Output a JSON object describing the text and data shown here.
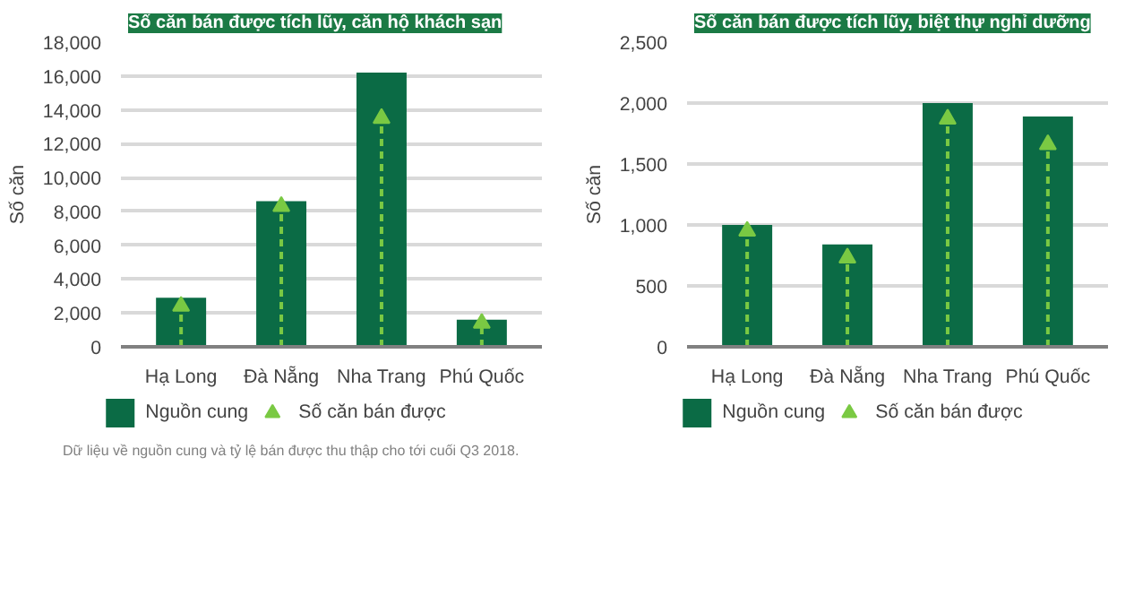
{
  "chart_data": [
    {
      "type": "bar",
      "title": "Số căn bán được tích lũy, căn hộ khách sạn",
      "ylabel": "Số căn",
      "categories": [
        "Hạ Long",
        "Đà Nẵng",
        "Nha Trang",
        "Phú Quốc"
      ],
      "series": [
        {
          "name": "Nguồn cung",
          "type": "bar",
          "color": "#0b6b45",
          "values": [
            2900,
            8600,
            16200,
            1600
          ]
        },
        {
          "name": "Số căn bán được",
          "type": "lollipop",
          "color": "#7ac943",
          "marker": "triangle",
          "line_style": "dashed",
          "values": [
            2400,
            8300,
            13500,
            1400
          ]
        }
      ],
      "ylim": [
        0,
        18000
      ],
      "yticks": [
        0,
        {
          "value": 2000,
          "label": "2,000"
        },
        {
          "value": 4000,
          "label": "4,000"
        },
        {
          "value": 6000,
          "label": "6,000"
        },
        {
          "value": 8000,
          "label": "8,000"
        },
        {
          "value": 10000,
          "label": "10,000"
        },
        {
          "value": 12000,
          "label": "12,000"
        },
        {
          "value": 14000,
          "label": "14,000"
        },
        {
          "value": 16000,
          "label": "16,000"
        },
        {
          "value": 18000,
          "label": "18,000"
        }
      ],
      "grid": "y",
      "legend": "bottom",
      "annotations": [
        "Dữ liệu về nguồn cung và tỷ lệ bán được thu thập cho tới cuối Q3 2018."
      ]
    },
    {
      "type": "bar",
      "title": "Số căn bán được tích lũy, biệt thự nghỉ dưỡng",
      "ylabel": "Số căn",
      "categories": [
        "Hạ Long",
        "Đà Nẵng",
        "Nha Trang",
        "Phú Quốc"
      ],
      "series": [
        {
          "name": "Nguồn cung",
          "type": "bar",
          "color": "#0b6b45",
          "values": [
            1000,
            840,
            2000,
            1890
          ]
        },
        {
          "name": "Số căn bán được",
          "type": "lollipop",
          "color": "#7ac943",
          "marker": "triangle",
          "line_style": "dashed",
          "values": [
            950,
            730,
            1870,
            1660
          ]
        }
      ],
      "ylim": [
        0,
        2500
      ],
      "yticks": [
        0,
        500,
        {
          "value": 1000,
          "label": "1,000"
        },
        {
          "value": 1500,
          "label": "1,500"
        },
        {
          "value": 2000,
          "label": "2,000"
        },
        {
          "value": 2500,
          "label": "2,500"
        }
      ],
      "grid": "y",
      "legend": "bottom"
    }
  ]
}
